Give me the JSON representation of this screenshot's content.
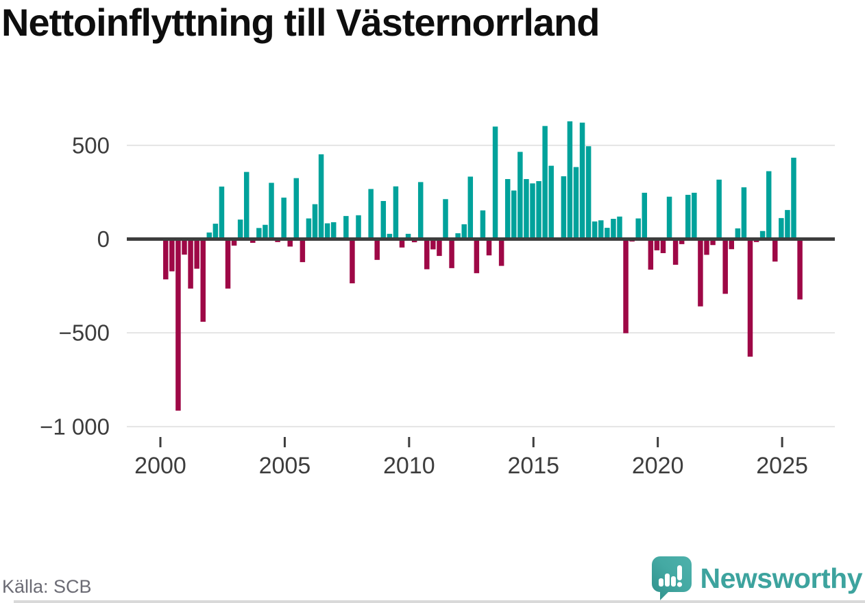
{
  "title": "Nettoinflyttning till Västernorrland",
  "source": "Källa: SCB",
  "branding": {
    "name": "Newsworthy",
    "logo_icon": "speech-bubble-bar-chart-icon"
  },
  "colors": {
    "positive": "#00a29b",
    "negative": "#9e0846",
    "zero_line": "#3d3d3d",
    "gridline": "#e4e4e4",
    "axis_text": "#3d3d3d",
    "title_text": "#0e0e0e",
    "source_text": "#6b6b74",
    "brand_teal": "#3da39e"
  },
  "chart_data": {
    "type": "bar",
    "title": "Nettoinflyttning till Västernorrland",
    "frequency": "quarterly",
    "start_quarter": "2000 Q1",
    "end_quarter": "2025 Q3",
    "grid": "horizontal",
    "legend": "none",
    "ylim": [
      -1000,
      680
    ],
    "y_tick_values": [
      500,
      0,
      -500,
      -1000
    ],
    "y_tick_labels": [
      "500",
      "0",
      "−500",
      "−1 000"
    ],
    "x_tick_years": [
      2000,
      2005,
      2010,
      2015,
      2020,
      2025
    ],
    "x_tick_labels": [
      "2000",
      "2005",
      "2010",
      "2015",
      "2020",
      "2025"
    ],
    "values": [
      -215,
      -172,
      -915,
      -83,
      -264,
      -158,
      -441,
      35,
      82,
      280,
      -264,
      -35,
      104,
      358,
      -20,
      59,
      76,
      300,
      -16,
      221,
      -40,
      325,
      -123,
      110,
      186,
      452,
      84,
      90,
      0,
      123,
      -236,
      127,
      0,
      267,
      -111,
      203,
      28,
      281,
      -45,
      28,
      -17,
      304,
      -161,
      -55,
      -90,
      213,
      -155,
      31,
      79,
      333,
      -182,
      153,
      -87,
      600,
      -143,
      320,
      259,
      465,
      320,
      297,
      309,
      603,
      391,
      0,
      335,
      628,
      384,
      621,
      495,
      94,
      100,
      60,
      108,
      120,
      -502,
      -13,
      110,
      247,
      -163,
      -60,
      -75,
      226,
      -137,
      -27,
      236,
      247,
      -359,
      -84,
      -32,
      317,
      -292,
      -54,
      57,
      276,
      -627,
      -16,
      43,
      362,
      -120,
      112,
      155,
      434,
      -322
    ]
  }
}
